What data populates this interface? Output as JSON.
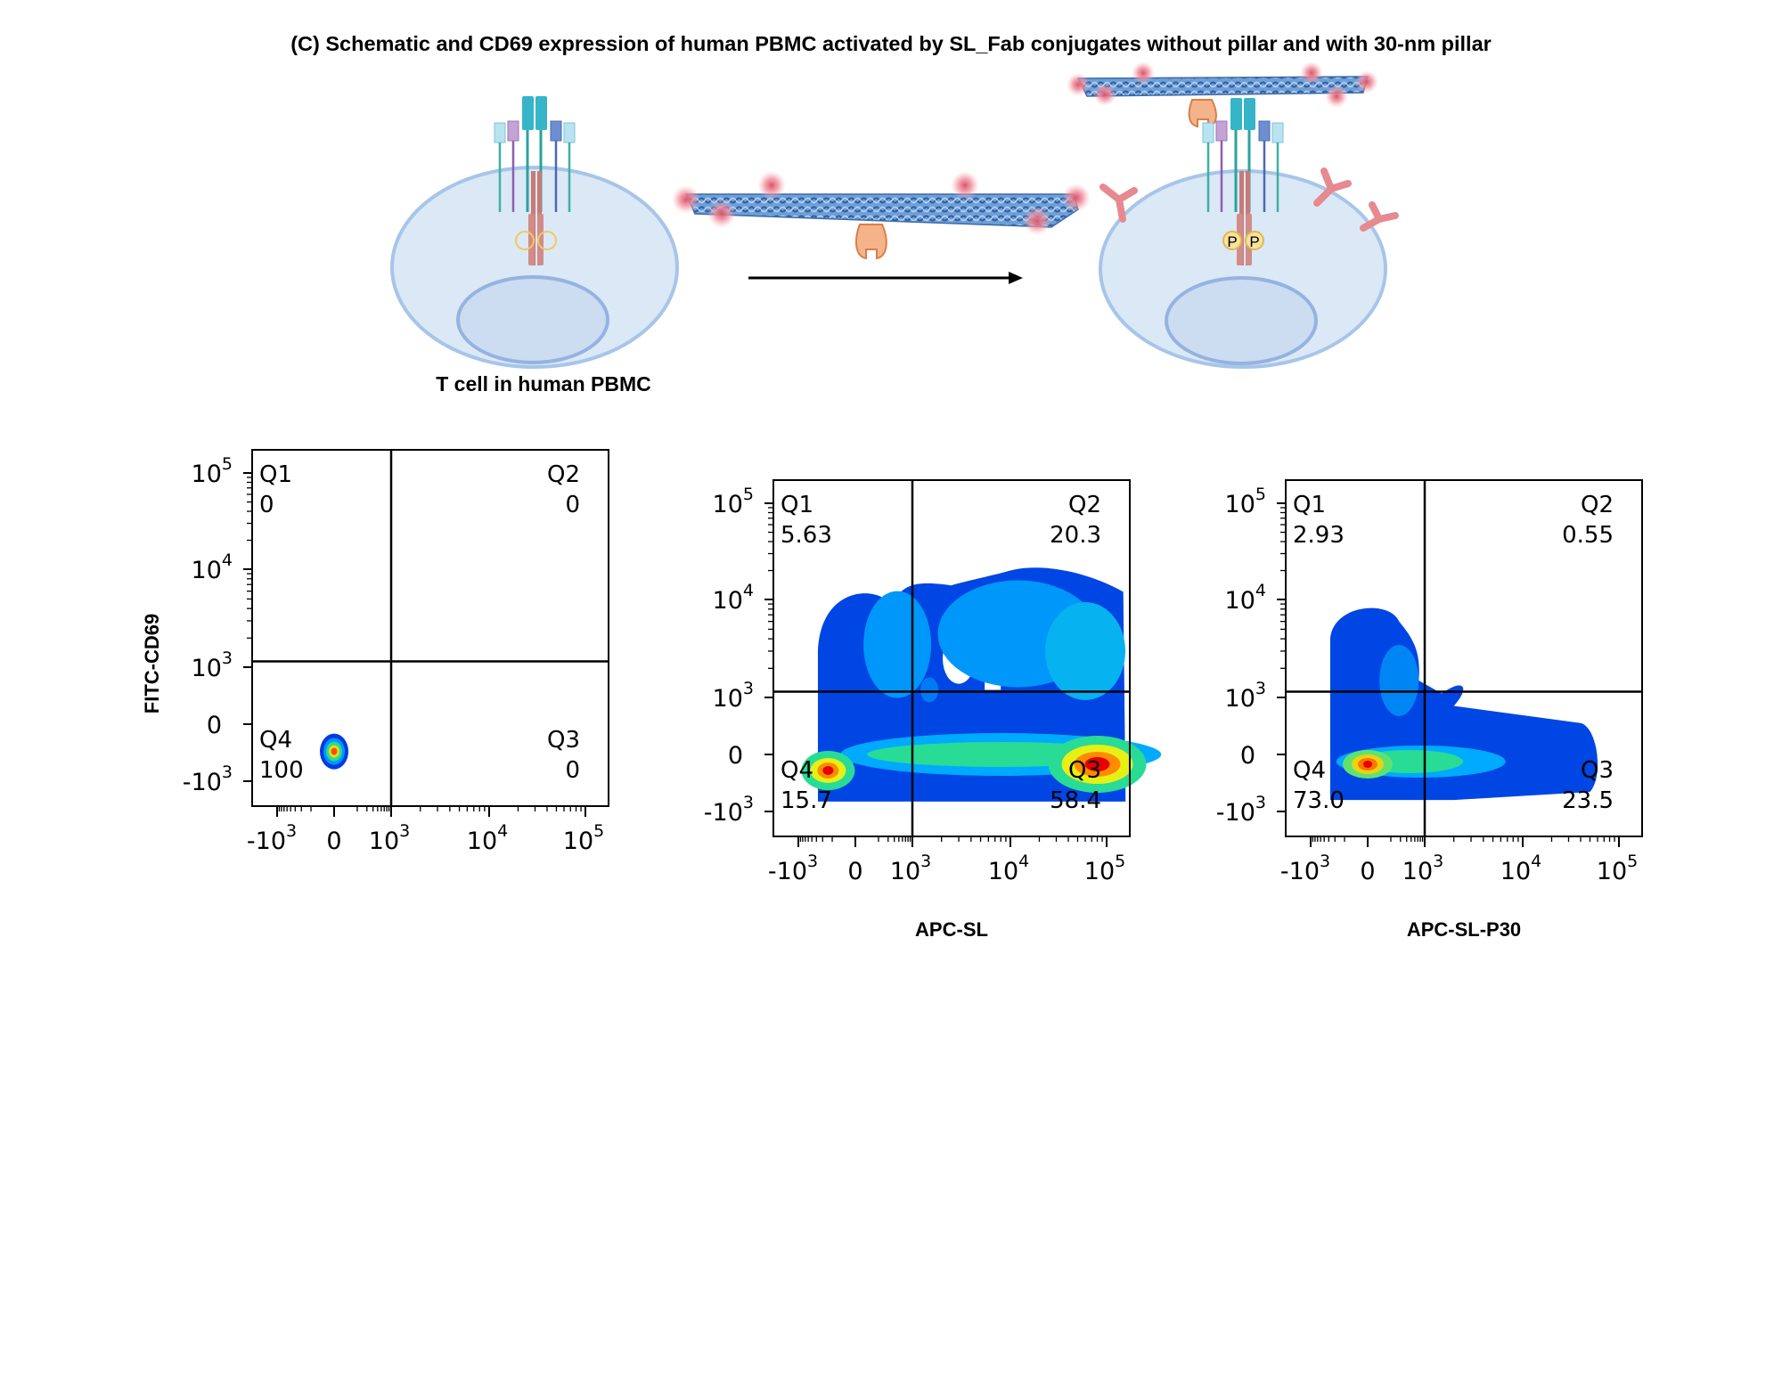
{
  "figure": {
    "title": "(C) Schematic and CD69 expression of human PBMC activated by SL_Fab conjugates without pillar and with 30-nm pillar",
    "cell_caption": "T cell in human PBMC",
    "phospho_label": "P"
  },
  "chart_data": [
    {
      "type": "scatter",
      "title": "",
      "xlabel": "",
      "ylabel": "FITC-CD69",
      "x_scale": "biexponential",
      "y_scale": "biexponential",
      "x_ticks": [
        "-10^3",
        "0",
        "10^3",
        "10^4",
        "10^5"
      ],
      "y_ticks": [
        "-10^3",
        "0",
        "10^3",
        "10^4",
        "10^5"
      ],
      "quadrants": [
        {
          "name": "Q1",
          "value": "0"
        },
        {
          "name": "Q2",
          "value": "0"
        },
        {
          "name": "Q3",
          "value": "0"
        },
        {
          "name": "Q4",
          "value": "100"
        }
      ]
    },
    {
      "type": "scatter",
      "title": "",
      "xlabel": "APC-SL",
      "ylabel": "",
      "x_scale": "biexponential",
      "y_scale": "biexponential",
      "x_ticks": [
        "-10^3",
        "0",
        "10^3",
        "10^4",
        "10^5"
      ],
      "y_ticks": [
        "-10^3",
        "0",
        "10^3",
        "10^4",
        "10^5"
      ],
      "quadrants": [
        {
          "name": "Q1",
          "value": "5.63"
        },
        {
          "name": "Q2",
          "value": "20.3"
        },
        {
          "name": "Q3",
          "value": "58.4"
        },
        {
          "name": "Q4",
          "value": "15.7"
        }
      ]
    },
    {
      "type": "scatter",
      "title": "",
      "xlabel": "APC-SL-P30",
      "ylabel": "",
      "x_scale": "biexponential",
      "y_scale": "biexponential",
      "x_ticks": [
        "-10^3",
        "0",
        "10^3",
        "10^4",
        "10^5"
      ],
      "y_ticks": [
        "-10^3",
        "0",
        "10^3",
        "10^4",
        "10^5"
      ],
      "quadrants": [
        {
          "name": "Q1",
          "value": "2.93"
        },
        {
          "name": "Q2",
          "value": "0.55"
        },
        {
          "name": "Q3",
          "value": "23.5"
        },
        {
          "name": "Q4",
          "value": "73.0"
        }
      ]
    }
  ]
}
